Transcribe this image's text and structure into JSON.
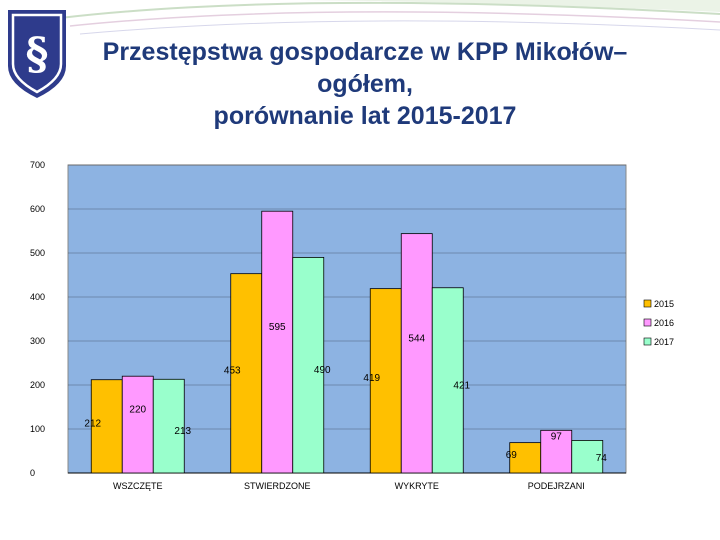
{
  "chart_data": {
    "type": "bar",
    "title_lines": [
      "Przestępstwa gospodarcze w KPP Mikołów–",
      "ogółem,",
      "porównanie lat 2015-2017"
    ],
    "categories": [
      "WSZCZĘTE",
      "STWIERDZONE",
      "WYKRYTE",
      "PODEJRZANI"
    ],
    "series": [
      {
        "name": "2015",
        "color": "#ffc000",
        "values": [
          212,
          453,
          419,
          69
        ]
      },
      {
        "name": "2016",
        "color": "#ff99ff",
        "values": [
          220,
          595,
          544,
          97
        ]
      },
      {
        "name": "2017",
        "color": "#99ffcc",
        "values": [
          213,
          490,
          421,
          74
        ]
      }
    ],
    "ylim": [
      0,
      700
    ],
    "yticks": [
      0,
      100,
      200,
      300,
      400,
      500,
      600,
      700
    ],
    "grid": true,
    "legend_position": "right",
    "plot_background": "#8db3e2"
  },
  "icon": {
    "name": "paragraph-shield-icon",
    "glyph": "§",
    "color": "#2e3b8c"
  }
}
